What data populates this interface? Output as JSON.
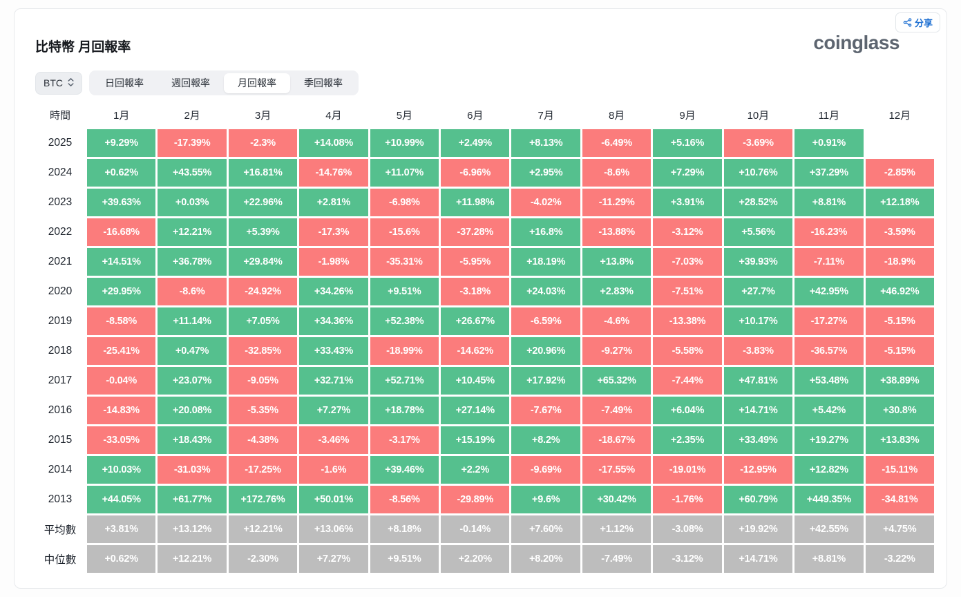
{
  "header": {
    "title": "比特幣 月回報率",
    "logo": "coinglass",
    "share_label": "分享"
  },
  "controls": {
    "symbol": "BTC",
    "tabs": [
      {
        "label": "日回報率",
        "active": false
      },
      {
        "label": "週回報率",
        "active": false
      },
      {
        "label": "月回報率",
        "active": true
      },
      {
        "label": "季回報率",
        "active": false
      }
    ]
  },
  "colors": {
    "positive": "#55c08e",
    "negative": "#fb7c7c",
    "stat": "#bdbdbd",
    "accent_blue": "#1d6fd2"
  },
  "table": {
    "corner_header": "時間",
    "months": [
      "1月",
      "2月",
      "3月",
      "4月",
      "5月",
      "6月",
      "7月",
      "8月",
      "9月",
      "10月",
      "11月",
      "12月"
    ],
    "rows": [
      {
        "label": "2025",
        "type": "year",
        "values": [
          "+9.29%",
          "-17.39%",
          "-2.3%",
          "+14.08%",
          "+10.99%",
          "+2.49%",
          "+8.13%",
          "-6.49%",
          "+5.16%",
          "-3.69%",
          "+0.91%",
          ""
        ]
      },
      {
        "label": "2024",
        "type": "year",
        "values": [
          "+0.62%",
          "+43.55%",
          "+16.81%",
          "-14.76%",
          "+11.07%",
          "-6.96%",
          "+2.95%",
          "-8.6%",
          "+7.29%",
          "+10.76%",
          "+37.29%",
          "-2.85%"
        ]
      },
      {
        "label": "2023",
        "type": "year",
        "values": [
          "+39.63%",
          "+0.03%",
          "+22.96%",
          "+2.81%",
          "-6.98%",
          "+11.98%",
          "-4.02%",
          "-11.29%",
          "+3.91%",
          "+28.52%",
          "+8.81%",
          "+12.18%"
        ]
      },
      {
        "label": "2022",
        "type": "year",
        "values": [
          "-16.68%",
          "+12.21%",
          "+5.39%",
          "-17.3%",
          "-15.6%",
          "-37.28%",
          "+16.8%",
          "-13.88%",
          "-3.12%",
          "+5.56%",
          "-16.23%",
          "-3.59%"
        ]
      },
      {
        "label": "2021",
        "type": "year",
        "values": [
          "+14.51%",
          "+36.78%",
          "+29.84%",
          "-1.98%",
          "-35.31%",
          "-5.95%",
          "+18.19%",
          "+13.8%",
          "-7.03%",
          "+39.93%",
          "-7.11%",
          "-18.9%"
        ]
      },
      {
        "label": "2020",
        "type": "year",
        "values": [
          "+29.95%",
          "-8.6%",
          "-24.92%",
          "+34.26%",
          "+9.51%",
          "-3.18%",
          "+24.03%",
          "+2.83%",
          "-7.51%",
          "+27.7%",
          "+42.95%",
          "+46.92%"
        ]
      },
      {
        "label": "2019",
        "type": "year",
        "values": [
          "-8.58%",
          "+11.14%",
          "+7.05%",
          "+34.36%",
          "+52.38%",
          "+26.67%",
          "-6.59%",
          "-4.6%",
          "-13.38%",
          "+10.17%",
          "-17.27%",
          "-5.15%"
        ]
      },
      {
        "label": "2018",
        "type": "year",
        "values": [
          "-25.41%",
          "+0.47%",
          "-32.85%",
          "+33.43%",
          "-18.99%",
          "-14.62%",
          "+20.96%",
          "-9.27%",
          "-5.58%",
          "-3.83%",
          "-36.57%",
          "-5.15%"
        ]
      },
      {
        "label": "2017",
        "type": "year",
        "values": [
          "-0.04%",
          "+23.07%",
          "-9.05%",
          "+32.71%",
          "+52.71%",
          "+10.45%",
          "+17.92%",
          "+65.32%",
          "-7.44%",
          "+47.81%",
          "+53.48%",
          "+38.89%"
        ]
      },
      {
        "label": "2016",
        "type": "year",
        "values": [
          "-14.83%",
          "+20.08%",
          "-5.35%",
          "+7.27%",
          "+18.78%",
          "+27.14%",
          "-7.67%",
          "-7.49%",
          "+6.04%",
          "+14.71%",
          "+5.42%",
          "+30.8%"
        ]
      },
      {
        "label": "2015",
        "type": "year",
        "values": [
          "-33.05%",
          "+18.43%",
          "-4.38%",
          "-3.46%",
          "-3.17%",
          "+15.19%",
          "+8.2%",
          "-18.67%",
          "+2.35%",
          "+33.49%",
          "+19.27%",
          "+13.83%"
        ]
      },
      {
        "label": "2014",
        "type": "year",
        "values": [
          "+10.03%",
          "-31.03%",
          "-17.25%",
          "-1.6%",
          "+39.46%",
          "+2.2%",
          "-9.69%",
          "-17.55%",
          "-19.01%",
          "-12.95%",
          "+12.82%",
          "-15.11%"
        ]
      },
      {
        "label": "2013",
        "type": "year",
        "values": [
          "+44.05%",
          "+61.77%",
          "+172.76%",
          "+50.01%",
          "-8.56%",
          "-29.89%",
          "+9.6%",
          "+30.42%",
          "-1.76%",
          "+60.79%",
          "+449.35%",
          "-34.81%"
        ]
      },
      {
        "label": "平均數",
        "type": "stat",
        "values": [
          "+3.81%",
          "+13.12%",
          "+12.21%",
          "+13.06%",
          "+8.18%",
          "-0.14%",
          "+7.60%",
          "+1.12%",
          "-3.08%",
          "+19.92%",
          "+42.55%",
          "+4.75%"
        ]
      },
      {
        "label": "中位數",
        "type": "stat",
        "values": [
          "+0.62%",
          "+12.21%",
          "-2.30%",
          "+7.27%",
          "+9.51%",
          "+2.20%",
          "+8.20%",
          "-7.49%",
          "-3.12%",
          "+14.71%",
          "+8.81%",
          "-3.22%"
        ]
      }
    ]
  }
}
